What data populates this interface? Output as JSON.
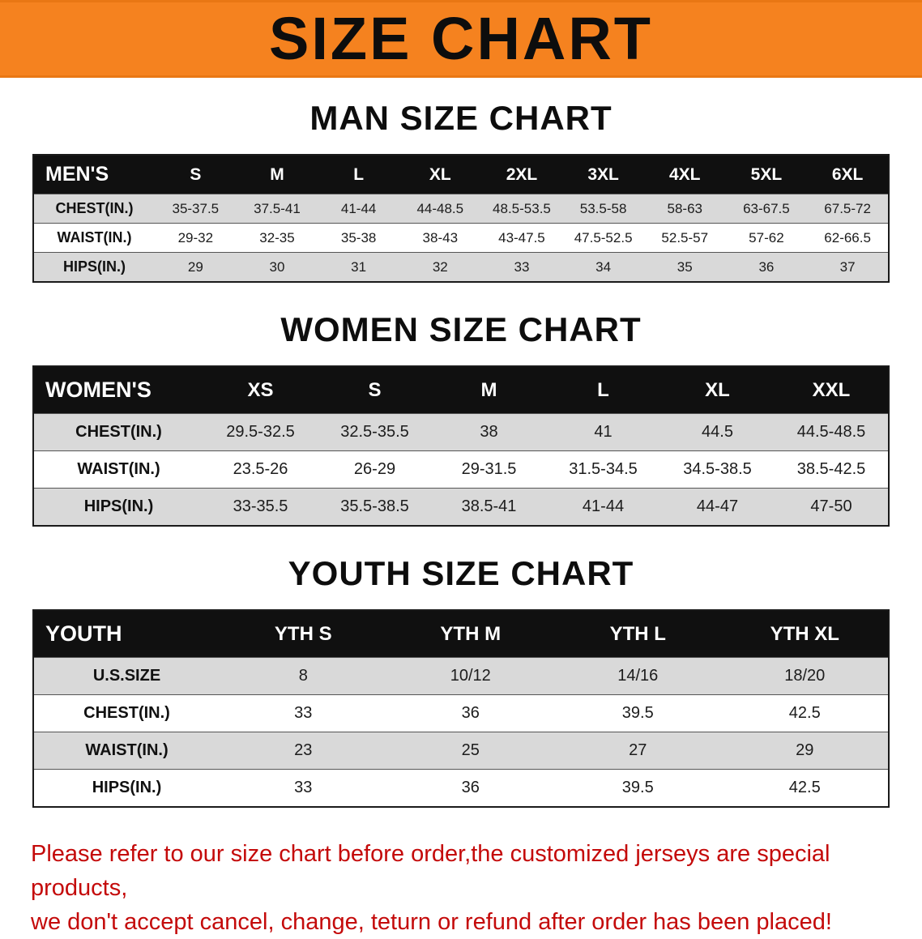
{
  "banner": {
    "title": "SIZE CHART",
    "bg_color": "#f5821f",
    "text_color": "#0d0d0d"
  },
  "sections": [
    {
      "id": "men",
      "heading": "MAN SIZE CHART",
      "header": [
        "MEN'S",
        "S",
        "M",
        "L",
        "XL",
        "2XL",
        "3XL",
        "4XL",
        "5XL",
        "6XL"
      ],
      "rows": [
        {
          "label": "CHEST(IN.)",
          "values": [
            "35-37.5",
            "37.5-41",
            "41-44",
            "44-48.5",
            "48.5-53.5",
            "53.5-58",
            "58-63",
            "63-67.5",
            "67.5-72"
          ]
        },
        {
          "label": "WAIST(IN.)",
          "values": [
            "29-32",
            "32-35",
            "35-38",
            "38-43",
            "43-47.5",
            "47.5-52.5",
            "52.5-57",
            "57-62",
            "62-66.5"
          ]
        },
        {
          "label": "HIPS(IN.)",
          "values": [
            "29",
            "30",
            "31",
            "32",
            "33",
            "34",
            "35",
            "36",
            "37"
          ]
        }
      ]
    },
    {
      "id": "women",
      "heading": "WOMEN SIZE CHART",
      "header": [
        "WOMEN'S",
        "XS",
        "S",
        "M",
        "L",
        "XL",
        "XXL"
      ],
      "rows": [
        {
          "label": "CHEST(IN.)",
          "values": [
            "29.5-32.5",
            "32.5-35.5",
            "38",
            "41",
            "44.5",
            "44.5-48.5"
          ]
        },
        {
          "label": "WAIST(IN.)",
          "values": [
            "23.5-26",
            "26-29",
            "29-31.5",
            "31.5-34.5",
            "34.5-38.5",
            "38.5-42.5"
          ]
        },
        {
          "label": "HIPS(IN.)",
          "values": [
            "33-35.5",
            "35.5-38.5",
            "38.5-41",
            "41-44",
            "44-47",
            "47-50"
          ]
        }
      ]
    },
    {
      "id": "youth",
      "heading": "YOUTH SIZE CHART",
      "header": [
        "YOUTH",
        "YTH S",
        "YTH M",
        "YTH L",
        "YTH XL"
      ],
      "rows": [
        {
          "label": "U.S.SIZE",
          "values": [
            "8",
            "10/12",
            "14/16",
            "18/20"
          ]
        },
        {
          "label": "CHEST(IN.)",
          "values": [
            "33",
            "36",
            "39.5",
            "42.5"
          ]
        },
        {
          "label": "WAIST(IN.)",
          "values": [
            "23",
            "25",
            "27",
            "29"
          ]
        },
        {
          "label": "HIPS(IN.)",
          "values": [
            "33",
            "36",
            "39.5",
            "42.5"
          ]
        }
      ]
    }
  ],
  "footer": {
    "lines": [
      "Please refer to our size chart before order,the customized jerseys are special products,",
      "we don't accept cancel, change, teturn or refund after order has been placed!"
    ],
    "text_color": "#c40a0a"
  }
}
